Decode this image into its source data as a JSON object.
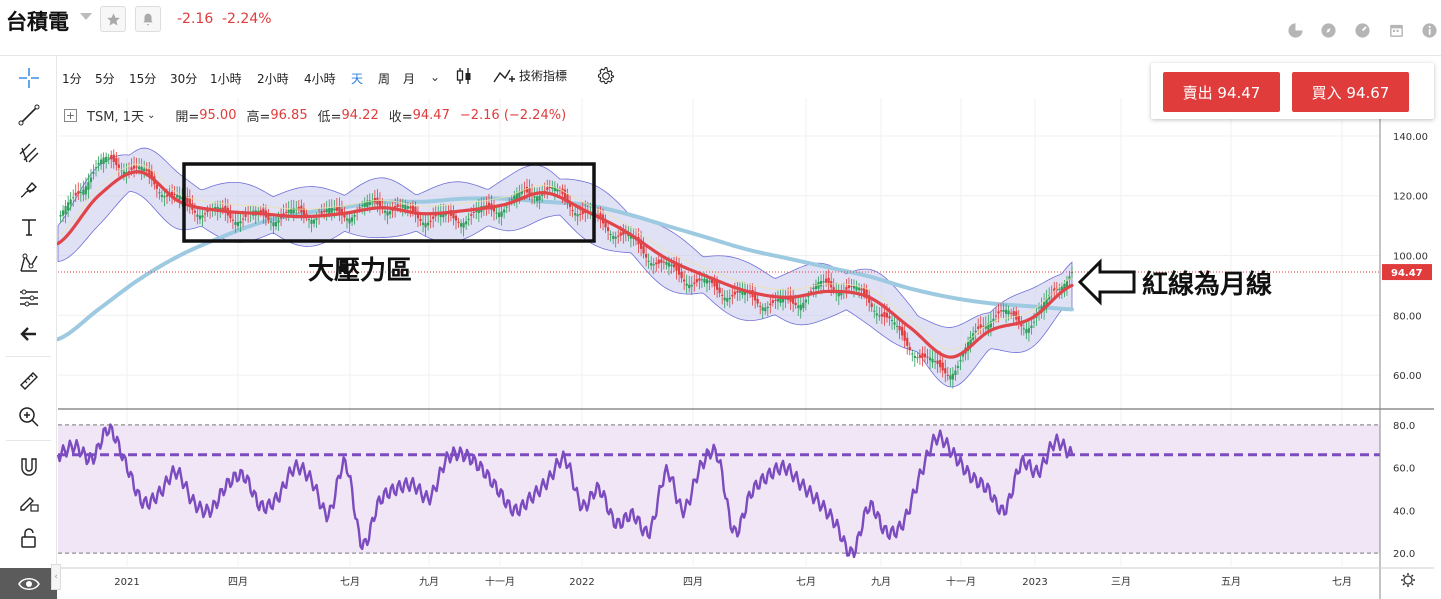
{
  "header": {
    "stock_name": "台積電",
    "change_abs": "-2.16",
    "change_pct": "-2.24%",
    "icons": [
      "pie-chart-icon",
      "compass-icon",
      "gauge-icon",
      "calendar-icon",
      "info-icon"
    ]
  },
  "toolbar": {
    "timeframes": [
      "1分",
      "5分",
      "15分",
      "30分",
      "1小時",
      "2小時",
      "4小時",
      "天",
      "周",
      "月"
    ],
    "active_timeframe": "天",
    "indicators_label": "技術指標"
  },
  "trade": {
    "sell_label": "賣出 94.47",
    "buy_label": "買入 94.67"
  },
  "legend": {
    "symbol": "TSM, 1天",
    "open_label": "開=",
    "open": "95.00",
    "high_label": "高=",
    "high": "96.85",
    "low_label": "低=",
    "low": "94.22",
    "close_label": "收=",
    "close": "94.47",
    "change": "−2.16 (−2.24%)"
  },
  "annotations": {
    "zone_label": "大壓力區",
    "red_line_label": "紅線為月線"
  },
  "colors": {
    "up": "#2e9e5b",
    "down": "#e03c3c",
    "ma_red": "#e0454a",
    "ma_long": "#9ecae1",
    "bband_fill": "#c9c9ef",
    "rsi": "#7b4bbf"
  },
  "chart_data": [
    {
      "type": "line",
      "title": "",
      "price_axis": [
        140.0,
        120.0,
        100.0,
        80.0,
        60.0
      ],
      "ylim": [
        50,
        146
      ],
      "current_price": 94.47,
      "current_price_label": "94.47",
      "x": [
        "2021-01-01",
        "2021-02-01",
        "2021-03-01",
        "2021-04-01",
        "2021-05-01",
        "2021-06-01",
        "2021-07-01",
        "2021-08-01",
        "2021-09-01",
        "2021-10-01",
        "2021-11-01",
        "2021-12-01",
        "2022-01-01",
        "2022-02-01",
        "2022-03-01",
        "2022-04-01",
        "2022-05-01",
        "2022-06-01",
        "2022-07-01",
        "2022-08-01",
        "2022-09-01",
        "2022-10-01",
        "2022-11-01",
        "2022-12-01",
        "2023-01-01",
        "2023-02-01"
      ],
      "series": [
        {
          "values": [
            112,
            130,
            128,
            118,
            114,
            113,
            114,
            114,
            117,
            113,
            113,
            117,
            122,
            114,
            106,
            96,
            90,
            86,
            84,
            90,
            85,
            70,
            62,
            80,
            78,
            95
          ]
        },
        {
          "values": [
            104,
            120,
            128,
            118,
            115,
            114,
            113,
            114,
            116,
            114,
            115,
            117,
            121,
            115,
            108,
            99,
            93,
            88,
            86,
            88,
            86,
            76,
            66,
            75,
            79,
            90
          ]
        },
        {
          "values": [
            72,
            82,
            92,
            100,
            106,
            111,
            114,
            116,
            118,
            118,
            119,
            119,
            118,
            117,
            114,
            110,
            106,
            102,
            99,
            96,
            93,
            89,
            86,
            84,
            83,
            82
          ]
        }
      ],
      "x_month_labels": [
        "2021",
        "四月",
        "七月",
        "九月",
        "十一月",
        "2022",
        "四月",
        "七月",
        "九月",
        "十一月",
        "2023",
        "三月",
        "五月",
        "七月"
      ]
    },
    {
      "type": "line",
      "title": "",
      "rsi_axis": [
        "80.0",
        "60.0",
        "40.0",
        "20.0"
      ],
      "ylim": [
        14,
        86
      ],
      "levels": [
        80,
        20
      ],
      "signal_level": 66,
      "series": [
        {
          "values": [
            66,
            70,
            64,
            78,
            62,
            44,
            48,
            58,
            44,
            40,
            52,
            56,
            42,
            46,
            60,
            54,
            38,
            62,
            24,
            44,
            50,
            52,
            46,
            64,
            66,
            60,
            50,
            40,
            46,
            54,
            64,
            42,
            50,
            34,
            38,
            30,
            58,
            40,
            60,
            66,
            30,
            48,
            56,
            60,
            52,
            44,
            34,
            20,
            42,
            30,
            34,
            56,
            74,
            66,
            56,
            50,
            40,
            62,
            58,
            72,
            66
          ]
        }
      ]
    }
  ]
}
